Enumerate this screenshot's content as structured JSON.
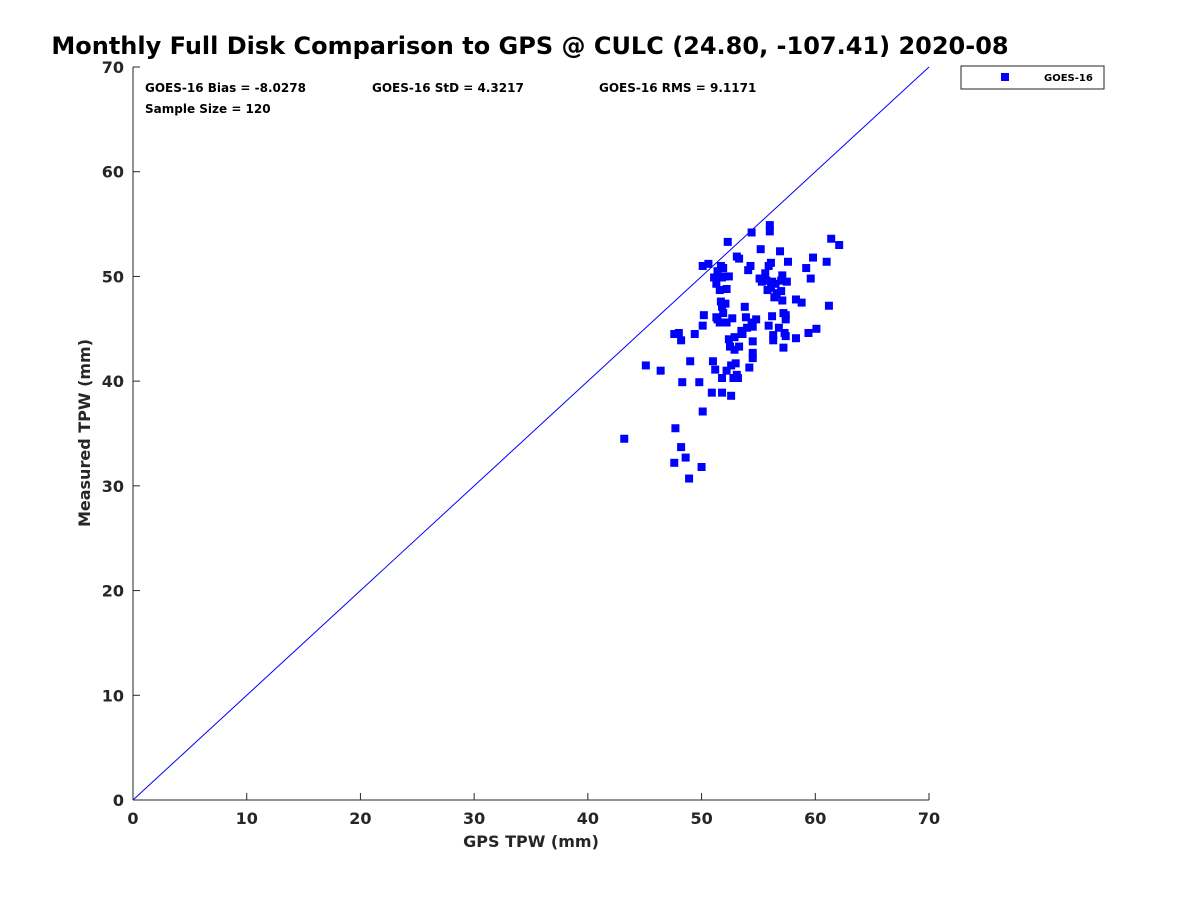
{
  "chart_data": {
    "type": "scatter",
    "title": "Monthly Full Disk Comparison to GPS @ CULC (24.80, -107.41) 2020-08",
    "xlabel": "GPS TPW (mm)",
    "ylabel": "Measured TPW (mm)",
    "xlim": [
      0,
      70
    ],
    "ylim": [
      0,
      70
    ],
    "xticks": [
      "0",
      "10",
      "20",
      "30",
      "40",
      "50",
      "60",
      "70"
    ],
    "yticks": [
      "0",
      "10",
      "20",
      "30",
      "40",
      "50",
      "60",
      "70"
    ],
    "grid": false,
    "legend_position": "outside-top-right",
    "stats": {
      "bias": "GOES-16 Bias = -8.0278",
      "std": "GOES-16 StD = 4.3217",
      "rms": "GOES-16 RMS = 9.1171",
      "sample": "Sample Size = 120"
    },
    "reference_line": {
      "x": [
        0,
        70
      ],
      "y": [
        0,
        70
      ],
      "color": "#0000ff"
    },
    "series": [
      {
        "name": "GOES-16",
        "color": "#0000ff",
        "marker": "square",
        "points": [
          [
            43.2,
            34.5
          ],
          [
            45.1,
            41.5
          ],
          [
            46.4,
            41.0
          ],
          [
            47.6,
            44.5
          ],
          [
            47.7,
            35.5
          ],
          [
            47.6,
            32.2
          ],
          [
            48.0,
            44.6
          ],
          [
            48.2,
            43.9
          ],
          [
            48.2,
            33.7
          ],
          [
            48.3,
            39.9
          ],
          [
            48.6,
            32.7
          ],
          [
            48.9,
            30.7
          ],
          [
            49.0,
            41.9
          ],
          [
            49.4,
            44.5
          ],
          [
            49.8,
            39.9
          ],
          [
            50.0,
            31.8
          ],
          [
            50.1,
            37.1
          ],
          [
            50.1,
            51.0
          ],
          [
            50.2,
            46.3
          ],
          [
            50.1,
            45.3
          ],
          [
            50.6,
            51.2
          ],
          [
            50.9,
            38.9
          ],
          [
            51.0,
            41.9
          ],
          [
            51.1,
            49.9
          ],
          [
            51.2,
            41.1
          ],
          [
            51.3,
            46.1
          ],
          [
            51.3,
            49.3
          ],
          [
            51.4,
            50.5
          ],
          [
            51.4,
            45.9
          ],
          [
            51.6,
            48.7
          ],
          [
            51.7,
            51.0
          ],
          [
            51.8,
            49.9
          ],
          [
            51.7,
            47.6
          ],
          [
            51.8,
            47.1
          ],
          [
            51.6,
            45.6
          ],
          [
            51.8,
            40.3
          ],
          [
            51.8,
            38.9
          ],
          [
            51.9,
            50.8
          ],
          [
            51.9,
            46.5
          ],
          [
            52.0,
            50.0
          ],
          [
            52.2,
            45.6
          ],
          [
            52.1,
            47.4
          ],
          [
            52.2,
            48.8
          ],
          [
            52.2,
            41.0
          ],
          [
            52.3,
            53.3
          ],
          [
            52.4,
            50.0
          ],
          [
            52.4,
            44.0
          ],
          [
            52.5,
            43.3
          ],
          [
            52.6,
            41.5
          ],
          [
            52.6,
            38.6
          ],
          [
            52.8,
            40.3
          ],
          [
            52.9,
            44.2
          ],
          [
            52.9,
            43.0
          ],
          [
            53.0,
            41.7
          ],
          [
            53.1,
            51.9
          ],
          [
            53.1,
            40.6
          ],
          [
            53.2,
            40.3
          ],
          [
            53.3,
            51.7
          ],
          [
            53.3,
            43.3
          ],
          [
            53.6,
            44.5
          ],
          [
            53.8,
            47.1
          ],
          [
            53.9,
            46.1
          ],
          [
            54.0,
            45.1
          ],
          [
            54.1,
            50.6
          ],
          [
            54.2,
            41.3
          ],
          [
            54.3,
            51.0
          ],
          [
            54.4,
            54.2
          ],
          [
            54.4,
            45.6
          ],
          [
            54.5,
            45.2
          ],
          [
            54.5,
            43.8
          ],
          [
            54.5,
            42.7
          ],
          [
            54.5,
            42.2
          ],
          [
            55.1,
            49.8
          ],
          [
            55.2,
            52.6
          ],
          [
            55.3,
            49.5
          ],
          [
            55.7,
            49.6
          ],
          [
            55.8,
            48.7
          ],
          [
            55.9,
            45.3
          ],
          [
            55.9,
            51.0
          ],
          [
            56.0,
            54.9
          ],
          [
            56.0,
            54.3
          ],
          [
            56.1,
            51.3
          ],
          [
            56.1,
            48.9
          ],
          [
            56.2,
            46.2
          ],
          [
            56.2,
            49.5
          ],
          [
            56.3,
            43.9
          ],
          [
            56.3,
            44.4
          ],
          [
            56.4,
            48.0
          ],
          [
            56.5,
            49.3
          ],
          [
            56.6,
            48.4
          ],
          [
            56.9,
            52.4
          ],
          [
            57.0,
            49.6
          ],
          [
            57.0,
            48.6
          ],
          [
            57.1,
            47.7
          ],
          [
            57.1,
            50.1
          ],
          [
            57.2,
            46.5
          ],
          [
            57.2,
            43.2
          ],
          [
            57.3,
            44.6
          ],
          [
            57.4,
            45.9
          ],
          [
            57.4,
            46.3
          ],
          [
            57.4,
            44.3
          ],
          [
            57.5,
            49.5
          ],
          [
            57.6,
            51.4
          ],
          [
            58.3,
            47.8
          ],
          [
            58.3,
            44.1
          ],
          [
            58.8,
            47.5
          ],
          [
            59.2,
            50.8
          ],
          [
            59.4,
            44.6
          ],
          [
            59.6,
            49.8
          ],
          [
            59.8,
            51.8
          ],
          [
            60.1,
            45.0
          ],
          [
            61.0,
            51.4
          ],
          [
            61.2,
            47.2
          ],
          [
            61.4,
            53.6
          ],
          [
            62.1,
            53.0
          ],
          [
            54.8,
            45.9
          ],
          [
            53.5,
            44.8
          ],
          [
            56.8,
            45.1
          ],
          [
            55.6,
            50.3
          ],
          [
            52.7,
            46.0
          ]
        ]
      }
    ]
  }
}
